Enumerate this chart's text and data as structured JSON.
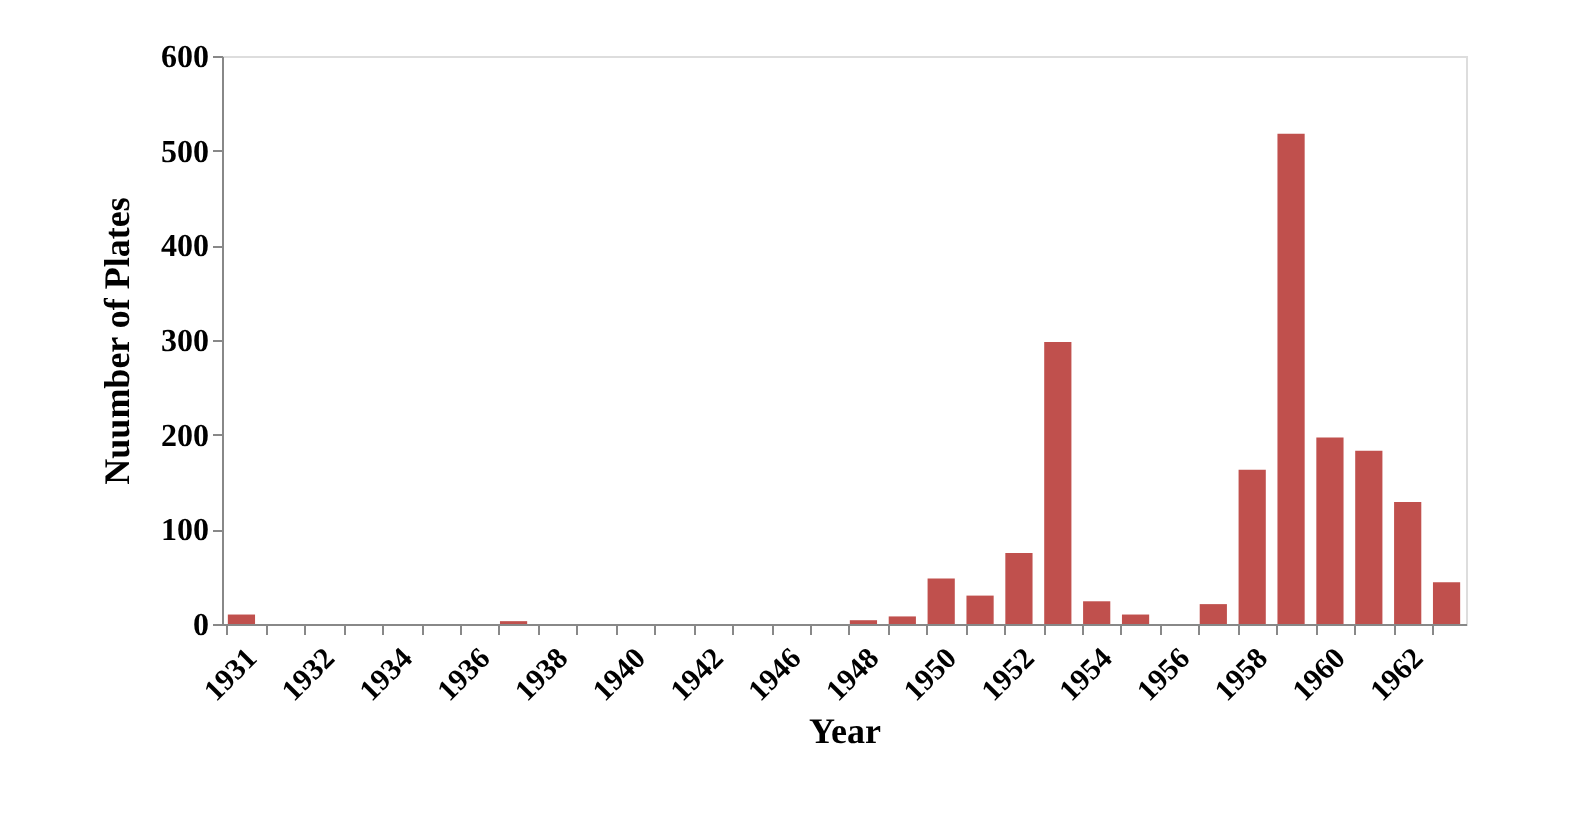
{
  "chart_data": {
    "type": "bar",
    "xlabel": "Year",
    "ylabel": "Nuumber of Plates",
    "categories": [
      "1931",
      null,
      "1932",
      null,
      "1934",
      null,
      "1936",
      null,
      "1938",
      null,
      "1940",
      null,
      "1942",
      null,
      "1946",
      null,
      "1948",
      null,
      "1950",
      null,
      "1952",
      null,
      "1954",
      null,
      "1956",
      null,
      "1958",
      null,
      "1960",
      null,
      "1962",
      null
    ],
    "values": [
      10,
      0,
      0,
      0,
      0,
      0,
      0,
      3,
      0,
      0,
      0,
      0,
      0,
      0,
      0,
      0,
      4,
      8,
      48,
      30,
      75,
      298,
      24,
      10,
      0,
      21,
      163,
      518,
      197,
      183,
      129,
      44
    ],
    "color": "#c0504d",
    "ylim": [
      0,
      600
    ],
    "yticks": [
      0,
      100,
      200,
      300,
      400,
      500,
      600
    ],
    "grid": false
  }
}
